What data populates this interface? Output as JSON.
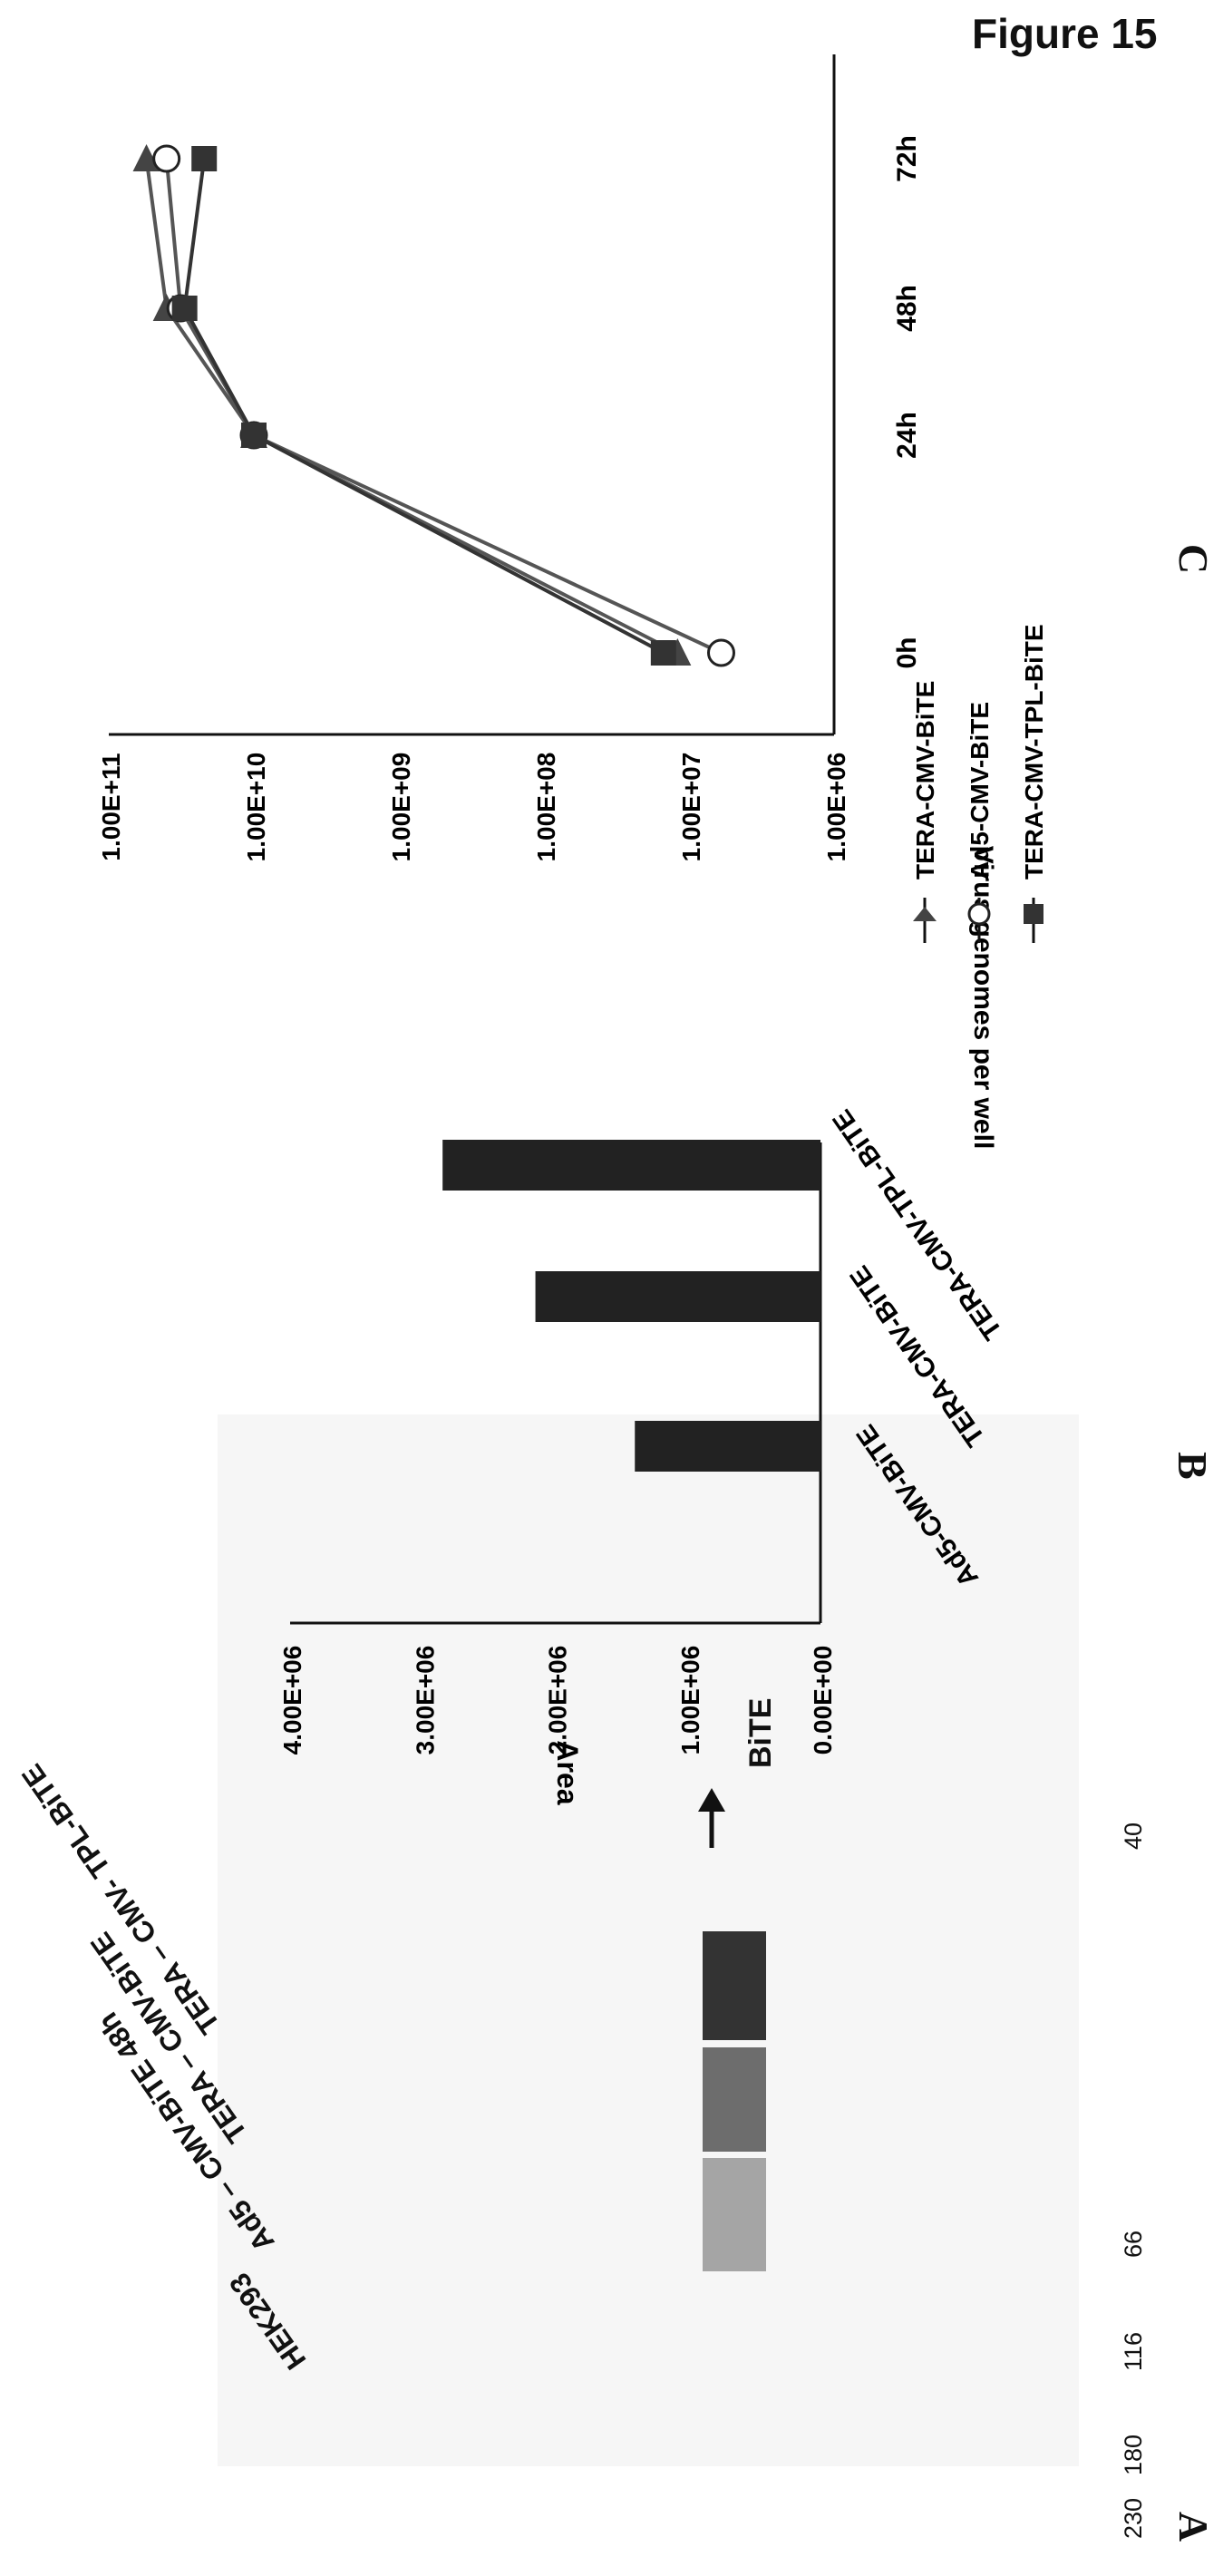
{
  "figure": {
    "title": "Figure 15"
  },
  "panels": {
    "A": {
      "letter": "A",
      "lanes": [
        "HEK293",
        "Ad5 – CMV-BiTE 48h",
        "TERA – CMV-BiTE",
        "TERA – CMV- TPL-BiTE"
      ],
      "markers": [
        "230",
        "180",
        "116",
        "66",
        "40"
      ],
      "band_label": "BiTE"
    },
    "B": {
      "letter": "B"
    },
    "C": {
      "letter": "C"
    }
  },
  "chart_data": [
    {
      "type": "bar",
      "panel": "B",
      "categories": [
        "Ad5-CMV-BiTE",
        "TERA-CMV-BiTE",
        "TERA-CMV-TPL-BiTE"
      ],
      "values": [
        1400000,
        2150000,
        2850000
      ],
      "ylabel": "Area",
      "yticks": [
        "0.00E+00",
        "1.00E+06",
        "2.00E+06",
        "3.00E+06",
        "4.00E+06"
      ],
      "ylim": [
        0,
        4000000
      ],
      "color": "#222222"
    },
    {
      "type": "line",
      "panel": "C",
      "categories": [
        "0h",
        "24h",
        "48h",
        "72h"
      ],
      "ylabel": "Virus genomes per well",
      "yscale": "log",
      "ylim": [
        1000000,
        100000000000
      ],
      "yticks": [
        "1.00E+06",
        "1.00E+07",
        "1.00E+08",
        "1.00E+09",
        "1.00E+10",
        "1.00E+11"
      ],
      "series": [
        {
          "name": "TERA-CMV-BiTE",
          "marker": "triangle",
          "values": [
            12000000,
            10000000000,
            40000000000,
            55000000000
          ]
        },
        {
          "name": "Ad5-CMV-BiTE",
          "marker": "circle",
          "values": [
            6000000,
            10000000000,
            32000000000,
            40000000000
          ]
        },
        {
          "name": "TERA-CMV-TPL-BiTE",
          "marker": "square",
          "values": [
            15000000,
            10000000000,
            30000000000,
            22000000000
          ]
        }
      ]
    }
  ]
}
